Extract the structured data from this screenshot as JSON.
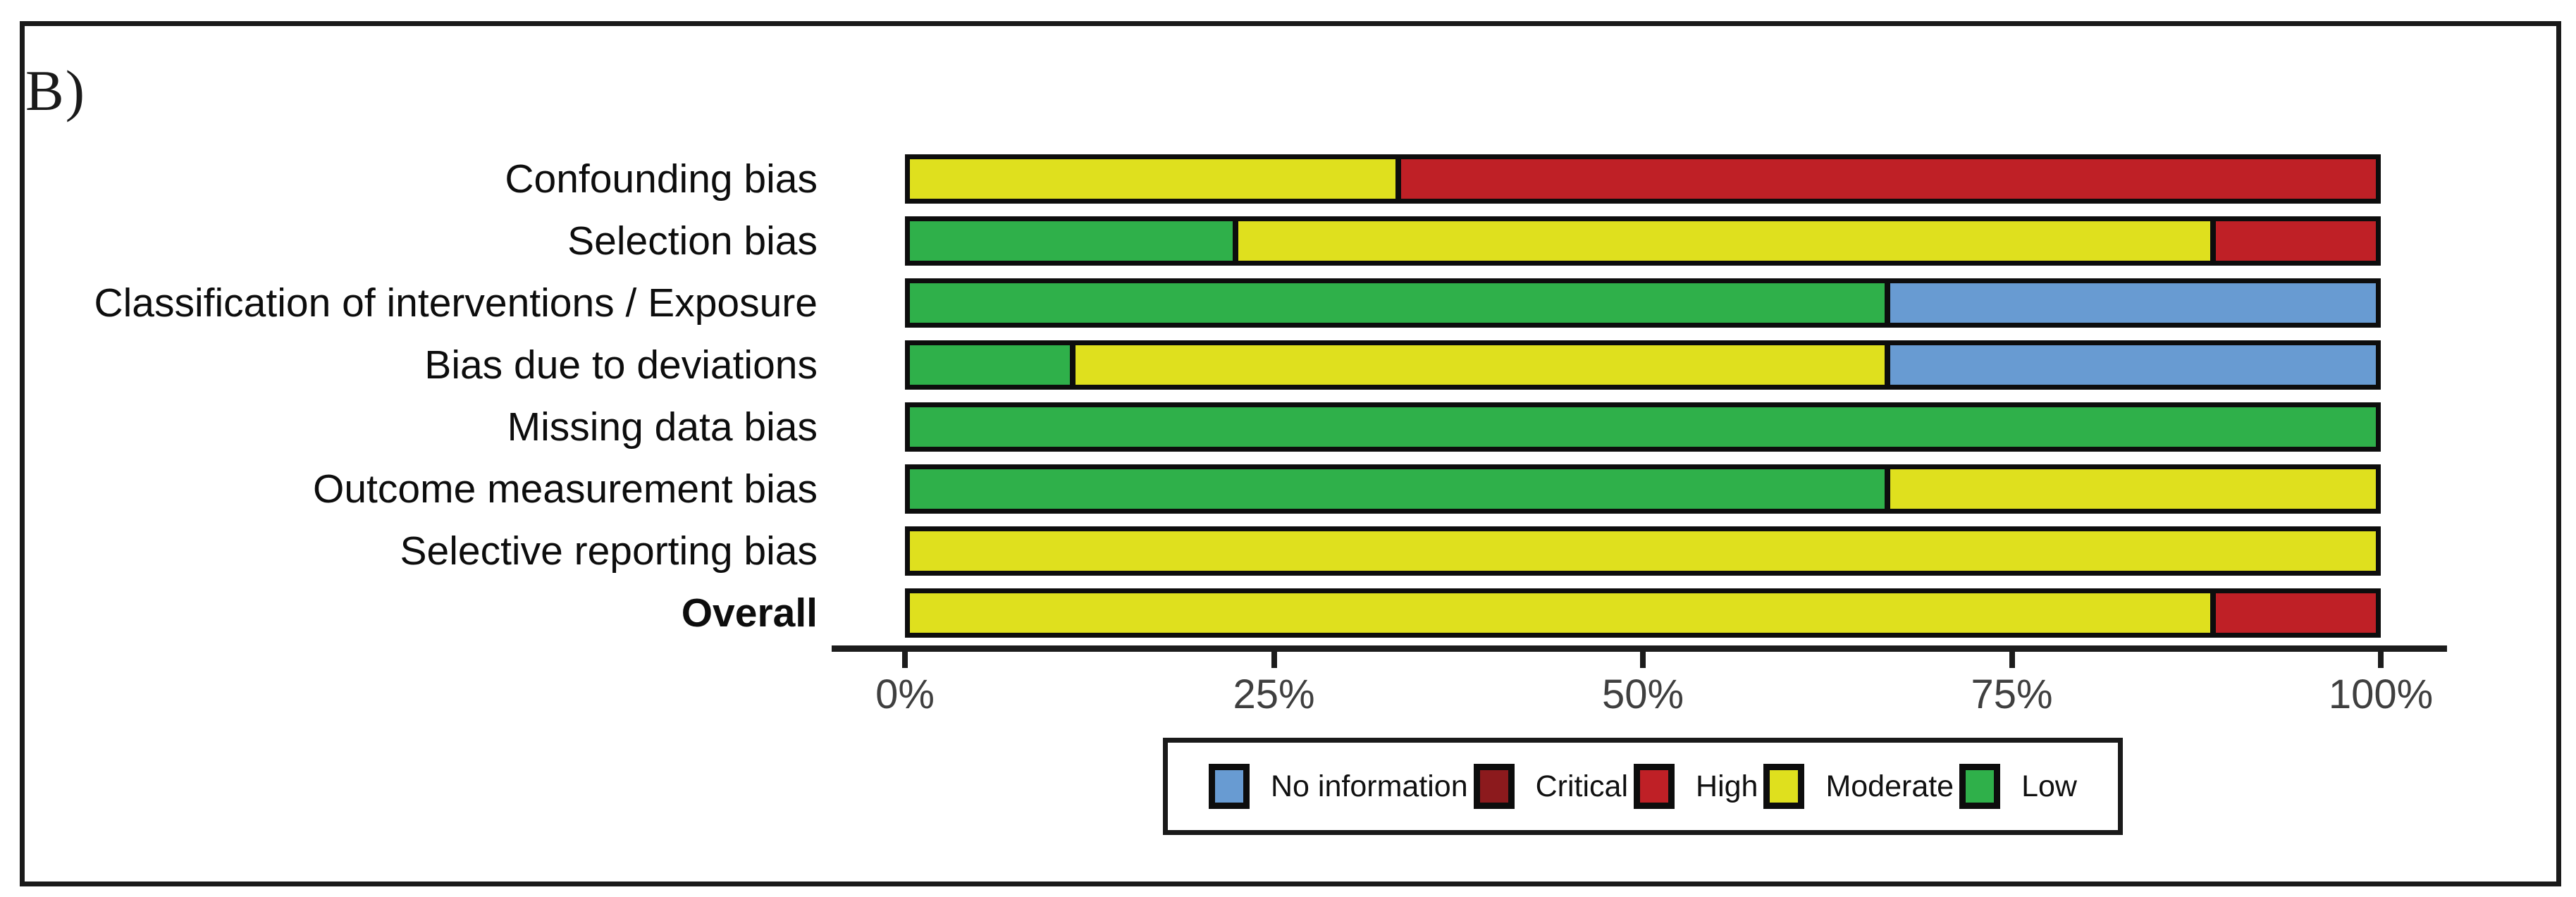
{
  "panel": {
    "label": "B)"
  },
  "chart_data": {
    "type": "bar",
    "stacked": true,
    "orientation": "horizontal",
    "title": "",
    "categories": [
      {
        "label": "Confounding bias",
        "bold": false
      },
      {
        "label": "Selection bias",
        "bold": false
      },
      {
        "label": "Classification of interventions / Exposure",
        "bold": false
      },
      {
        "label": "Bias due to deviations",
        "bold": false
      },
      {
        "label": "Missing data bias",
        "bold": false
      },
      {
        "label": "Outcome measurement bias",
        "bold": false
      },
      {
        "label": "Selective reporting bias",
        "bold": false
      },
      {
        "label": "Overall",
        "bold": true
      }
    ],
    "series": [
      {
        "name": "Low",
        "color": "#2FB04A",
        "values": [
          0,
          22.2,
          66.7,
          11.1,
          100,
          66.7,
          0,
          0
        ]
      },
      {
        "name": "Moderate",
        "color": "#DFE01E",
        "values": [
          33.3,
          66.7,
          0,
          55.6,
          0,
          33.3,
          100,
          88.9
        ]
      },
      {
        "name": "High",
        "color": "#BF2026",
        "values": [
          66.7,
          11.1,
          0,
          0,
          0,
          0,
          0,
          11.1
        ]
      },
      {
        "name": "Critical",
        "color": "#8C1A1D",
        "values": [
          0,
          0,
          0,
          0,
          0,
          0,
          0,
          0
        ]
      },
      {
        "name": "No information",
        "color": "#689BD2",
        "values": [
          0,
          0,
          33.3,
          33.3,
          0,
          0,
          0,
          0
        ]
      }
    ],
    "x_axis": {
      "tick_labels": [
        "0%",
        "25%",
        "50%",
        "75%",
        "100%"
      ],
      "tick_values": [
        0,
        25,
        50,
        75,
        100
      ],
      "range": [
        0,
        100
      ]
    },
    "legend_position": "bottom"
  },
  "legend": {
    "items": [
      {
        "label": "No information",
        "color": "#689BD2"
      },
      {
        "label": "Critical",
        "color": "#8C1A1D"
      },
      {
        "label": "High",
        "color": "#BF2026"
      },
      {
        "label": "Moderate",
        "color": "#DFE01E"
      },
      {
        "label": "Low",
        "color": "#2FB04A"
      }
    ]
  }
}
